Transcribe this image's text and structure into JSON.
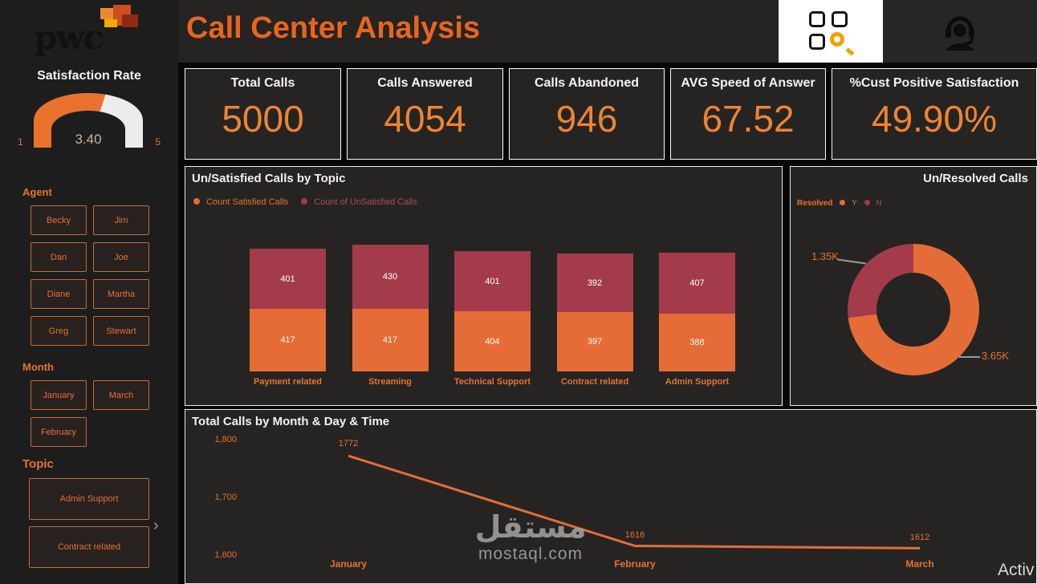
{
  "header": {
    "logo_text": "pwc",
    "title": "Call Center Analysis",
    "icons": {
      "left": "grid-magnifier",
      "right": "headset-agent"
    }
  },
  "sidebar": {
    "satisfaction": {
      "title": "Satisfaction Rate",
      "value": "3.40",
      "min": "1",
      "max": "5"
    },
    "agent": {
      "label": "Agent",
      "items": [
        "Becky",
        "Jim",
        "Dan",
        "Joe",
        "Diane",
        "Martha",
        "Greg",
        "Stewart"
      ]
    },
    "month": {
      "label": "Month",
      "items": [
        "January",
        "March",
        "February"
      ]
    },
    "topic": {
      "label": "Topic",
      "items": [
        "Admin Support",
        "Contract related"
      ],
      "chevron": "›"
    }
  },
  "kpis": [
    {
      "label": "Total Calls",
      "value": "5000"
    },
    {
      "label": "Calls Answered",
      "value": "4054"
    },
    {
      "label": "Calls Abandoned",
      "value": "946"
    },
    {
      "label": "AVG Speed of Answer",
      "value": "67.52"
    },
    {
      "label": "%Cust Positive Satisfaction",
      "value": "49.90%"
    }
  ],
  "chart_data": [
    {
      "type": "bar",
      "title": "Un/Satisfied Calls by Topic",
      "stacked": true,
      "legend_position": "top",
      "categories": [
        "Payment related",
        "Streaming",
        "Technical Support",
        "Contract related",
        "Admin Support"
      ],
      "series": [
        {
          "name": "Count Satisfied Calls",
          "color": "#E66C37",
          "values": [
            417,
            417,
            404,
            397,
            388
          ]
        },
        {
          "name": "Count of UnSatisfied Calls",
          "color": "#A33B4A",
          "values": [
            401,
            430,
            401,
            392,
            407
          ]
        }
      ]
    },
    {
      "type": "pie",
      "title": "Un/Resolved Calls",
      "legend_label": "Resolved",
      "slices": [
        {
          "label": "Y",
          "value": 3650,
          "value_text": "3.65K",
          "color": "#E66C37"
        },
        {
          "label": "N",
          "value": 1350,
          "value_text": "1.35K",
          "color": "#A33B4A"
        }
      ]
    },
    {
      "type": "line",
      "title": "Total Calls by Month & Day & Time",
      "categories": [
        "January",
        "February",
        "March"
      ],
      "values": [
        1772,
        1616,
        1612
      ],
      "ylim": [
        1600,
        1800
      ],
      "yticks": [
        "1,800",
        "1,700",
        "1,600"
      ],
      "line_color": "#E66C37"
    }
  ],
  "watermark": {
    "arabic": "مستقل",
    "domain": "mostaql.com"
  },
  "overlay": {
    "partial_text": "Activ"
  },
  "colors": {
    "accent": "#E8722E",
    "bar_orange": "#E66C37",
    "maroon": "#A33B4A",
    "panel": "#252423"
  }
}
